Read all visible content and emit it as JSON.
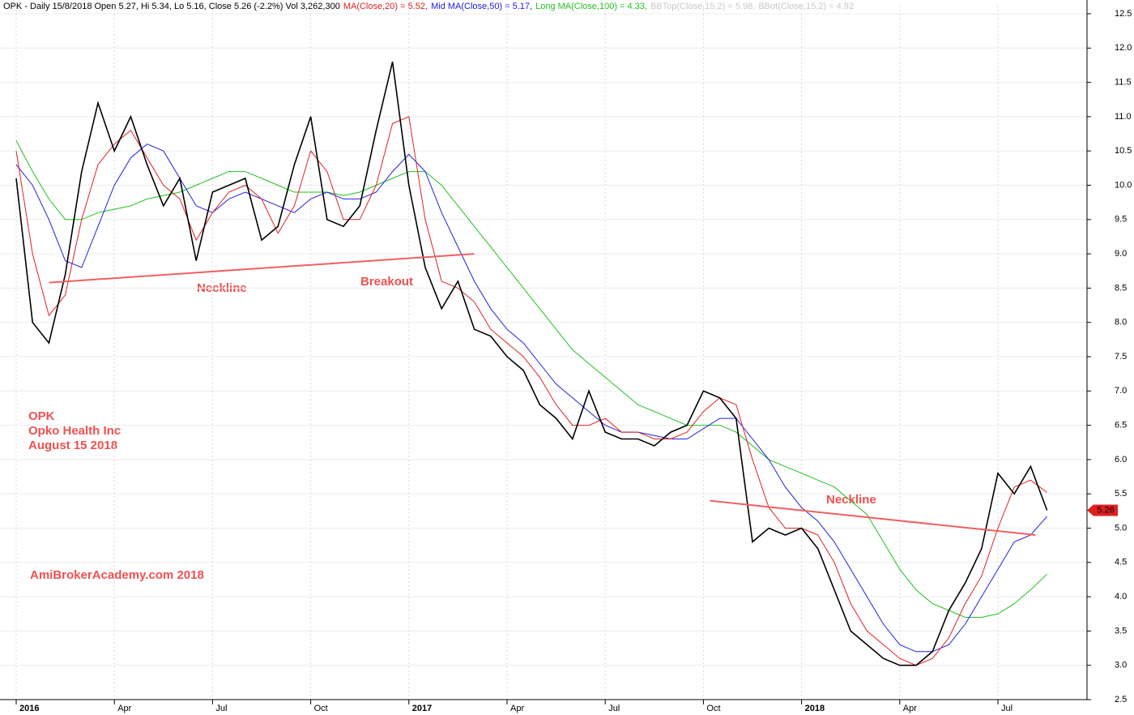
{
  "chart_data": {
    "type": "line",
    "header": [
      {
        "text": "OPK - Daily 15/8/2018 Open 5.27, Hi 5.34, Lo 5.16, Close 5.26 (-2.2%) Vol 3,262,300",
        "color": "#000000"
      },
      {
        "text": "MA(Close,20) = 5.52,",
        "color": "#e02020"
      },
      {
        "text": "Mid MA(Close,50) = 5.17,",
        "color": "#2020e0"
      },
      {
        "text": "Long MA(Close,100) = 4.33,",
        "color": "#20c020"
      },
      {
        "text": "BBTop(Close,15,2) = 5.98,",
        "color": "#c8c8c8"
      },
      {
        "text": "BBot(Close,15,2) = 4.92",
        "color": "#c8c8c8"
      }
    ],
    "annotations": {
      "neckline_1": "Neckline",
      "breakout": "Breakout",
      "neckline_2": "Neckline",
      "ticker": "OPK",
      "company": "Opko Health Inc",
      "date": "August 15 2018",
      "credit": "AmiBrokerAcademy.com  2018"
    },
    "categories": [
      "2016",
      null,
      null,
      null,
      null,
      null,
      "Apr",
      null,
      null,
      null,
      null,
      null,
      "Jul",
      null,
      null,
      null,
      null,
      null,
      "Oct",
      null,
      null,
      null,
      null,
      null,
      "2017",
      null,
      null,
      null,
      null,
      null,
      "Apr",
      null,
      null,
      null,
      null,
      null,
      "Jul",
      null,
      null,
      null,
      null,
      null,
      "Oct",
      null,
      null,
      null,
      null,
      null,
      "2018",
      null,
      null,
      null,
      null,
      null,
      "Apr",
      null,
      null,
      null,
      null,
      null,
      "Jul",
      null,
      null,
      null
    ],
    "series": [
      {
        "name": "Close",
        "color": "#000000",
        "width": 1.6,
        "values": [
          10.1,
          8.0,
          7.7,
          8.7,
          10.2,
          11.2,
          10.5,
          11.0,
          10.3,
          9.7,
          10.1,
          8.9,
          9.9,
          10.0,
          10.1,
          9.2,
          9.4,
          10.3,
          11.0,
          9.5,
          9.4,
          9.7,
          10.8,
          11.8,
          10.0,
          8.8,
          8.2,
          8.6,
          7.9,
          7.8,
          7.5,
          7.3,
          6.8,
          6.6,
          6.3,
          7.0,
          6.4,
          6.3,
          6.3,
          6.2,
          6.4,
          6.5,
          7.0,
          6.9,
          6.6,
          4.8,
          5.0,
          4.9,
          5.0,
          4.7,
          4.1,
          3.5,
          3.3,
          3.1,
          3.0,
          3.0,
          3.2,
          3.8,
          4.2,
          4.7,
          5.8,
          5.5,
          5.9,
          5.26
        ]
      },
      {
        "name": "MA(Close,20)",
        "color": "#e02020",
        "width": 1,
        "values": [
          10.5,
          9.0,
          8.1,
          8.4,
          9.5,
          10.3,
          10.6,
          10.8,
          10.4,
          10.0,
          9.8,
          9.2,
          9.6,
          9.9,
          10.0,
          9.8,
          9.3,
          9.7,
          10.5,
          10.2,
          9.5,
          9.5,
          10.0,
          10.9,
          11.0,
          9.5,
          8.6,
          8.5,
          8.3,
          7.9,
          7.7,
          7.5,
          7.2,
          6.8,
          6.5,
          6.5,
          6.6,
          6.4,
          6.4,
          6.3,
          6.3,
          6.4,
          6.7,
          6.9,
          6.8,
          6.0,
          5.3,
          5.0,
          5.0,
          4.9,
          4.5,
          3.9,
          3.5,
          3.3,
          3.1,
          3.0,
          3.1,
          3.4,
          3.9,
          4.3,
          5.0,
          5.6,
          5.7,
          5.52
        ]
      },
      {
        "name": "Mid MA(Close,50)",
        "color": "#2020e0",
        "width": 1,
        "values": [
          10.3,
          10.0,
          9.5,
          8.9,
          8.8,
          9.4,
          10.0,
          10.4,
          10.6,
          10.5,
          10.1,
          9.7,
          9.6,
          9.8,
          9.9,
          9.8,
          9.7,
          9.6,
          9.8,
          9.9,
          9.8,
          9.8,
          9.9,
          10.2,
          10.45,
          10.2,
          9.6,
          9.1,
          8.6,
          8.2,
          7.9,
          7.7,
          7.4,
          7.1,
          6.9,
          6.7,
          6.5,
          6.4,
          6.4,
          6.35,
          6.3,
          6.3,
          6.45,
          6.6,
          6.6,
          6.3,
          6.0,
          5.6,
          5.3,
          5.1,
          4.8,
          4.4,
          4.0,
          3.6,
          3.3,
          3.2,
          3.2,
          3.3,
          3.6,
          4.0,
          4.4,
          4.8,
          4.9,
          5.17
        ]
      },
      {
        "name": "Long MA(Close,100)",
        "color": "#20c020",
        "width": 1,
        "values": [
          10.65,
          10.2,
          9.8,
          9.5,
          9.5,
          9.6,
          9.65,
          9.7,
          9.8,
          9.85,
          9.9,
          10.0,
          10.1,
          10.2,
          10.2,
          10.1,
          10.0,
          9.9,
          9.9,
          9.9,
          9.85,
          9.9,
          10.0,
          10.1,
          10.2,
          10.2,
          10.0,
          9.7,
          9.4,
          9.1,
          8.8,
          8.5,
          8.2,
          7.9,
          7.6,
          7.4,
          7.2,
          7.0,
          6.8,
          6.7,
          6.6,
          6.5,
          6.5,
          6.5,
          6.4,
          6.2,
          6.0,
          5.9,
          5.8,
          5.7,
          5.6,
          5.4,
          5.2,
          4.8,
          4.4,
          4.1,
          3.9,
          3.8,
          3.7,
          3.7,
          3.75,
          3.9,
          4.1,
          4.33
        ]
      }
    ],
    "trendlines": [
      {
        "x": [
          2,
          28
        ],
        "values": [
          8.58,
          9.0
        ],
        "color": "#f06060"
      },
      {
        "x": [
          42.4,
          62.3
        ],
        "values": [
          5.4,
          4.9
        ],
        "color": "#f06060"
      }
    ],
    "last_value": 5.26,
    "last_color": "#e02020",
    "ylim": [
      2.5,
      12.5
    ],
    "yticks": [
      {
        "value": 2.5,
        "label": "2.5"
      },
      {
        "value": 3,
        "label": "3.0"
      },
      {
        "value": 3.5,
        "label": "3.5"
      },
      {
        "value": 4,
        "label": "4.0"
      },
      {
        "value": 4.5,
        "label": "4.5"
      },
      {
        "value": 5,
        "label": "5.0"
      },
      {
        "value": 5.5,
        "label": "5.5"
      },
      {
        "value": 6,
        "label": "6.0"
      },
      {
        "value": 6.5,
        "label": "6.5"
      },
      {
        "value": 7,
        "label": "7.0"
      },
      {
        "value": 7.5,
        "label": "7.5"
      },
      {
        "value": 8,
        "label": "8.0"
      },
      {
        "value": 8.5,
        "label": "8.5"
      },
      {
        "value": 9,
        "label": "9.0"
      },
      {
        "value": 9.5,
        "label": "9.5"
      },
      {
        "value": 10,
        "label": "10.0"
      },
      {
        "value": 10.5,
        "label": "10.5"
      },
      {
        "value": 11,
        "label": "11.0"
      },
      {
        "value": 11.5,
        "label": "11.5"
      },
      {
        "value": 12,
        "label": "12.0"
      },
      {
        "value": 12.5,
        "label": "12.5"
      }
    ],
    "grid": true
  }
}
